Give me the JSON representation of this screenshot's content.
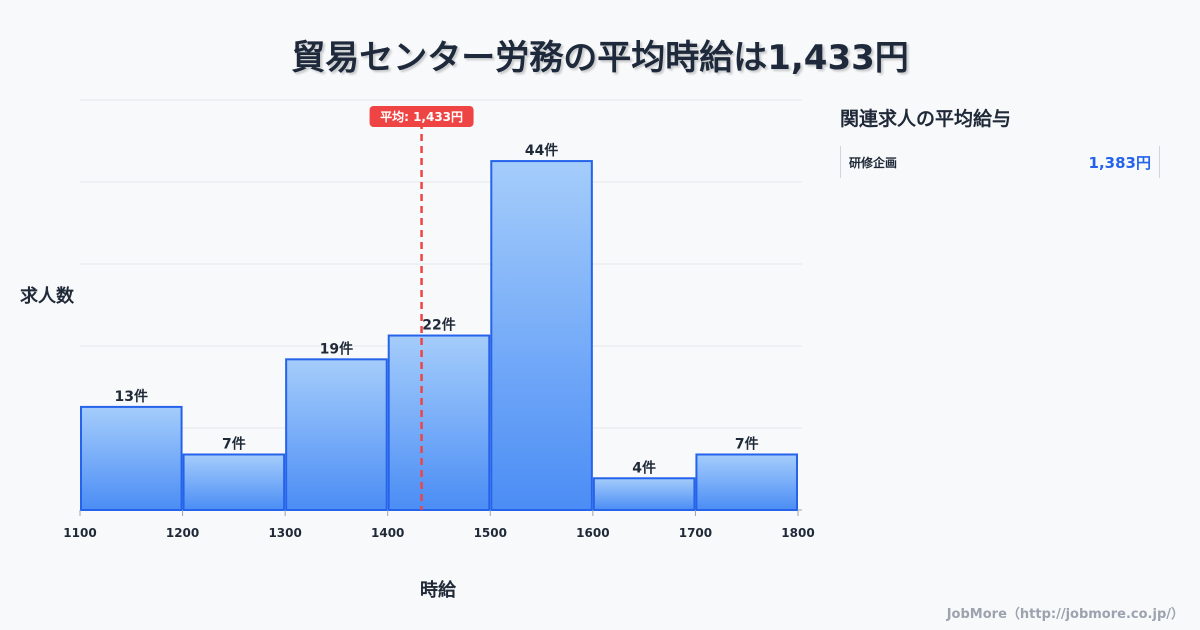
{
  "title": "貿易センター労務の平均時給は1,433円",
  "chart_data": {
    "type": "bar",
    "title": "貿易センター労務の平均時給は1,433円",
    "xlabel": "時給",
    "ylabel": "求人数",
    "bins": [
      1100,
      1200,
      1300,
      1400,
      1500,
      1600,
      1700,
      1800
    ],
    "values": [
      13,
      7,
      19,
      22,
      44,
      4,
      7
    ],
    "labels": [
      "13件",
      "7件",
      "19件",
      "22件",
      "44件",
      "4件",
      "7件"
    ],
    "xticks": [
      "1100",
      "1200",
      "1300",
      "1400",
      "1500",
      "1600",
      "1700",
      "1800"
    ],
    "ylim": [
      0,
      51.7
    ],
    "grid": true,
    "mean": 1433,
    "mean_label": "平均: 1,433円",
    "colors": {
      "bar_top": "#a5cdfb",
      "bar_bottom": "#4b8df5",
      "bar_edge": "#2563eb",
      "mean": "#ef4444"
    }
  },
  "side": {
    "title": "関連求人の平均給与",
    "items": [
      {
        "name": "研修企画",
        "value": "1,383円"
      }
    ]
  },
  "footer": "JobMore（http://jobmore.co.jp/）"
}
